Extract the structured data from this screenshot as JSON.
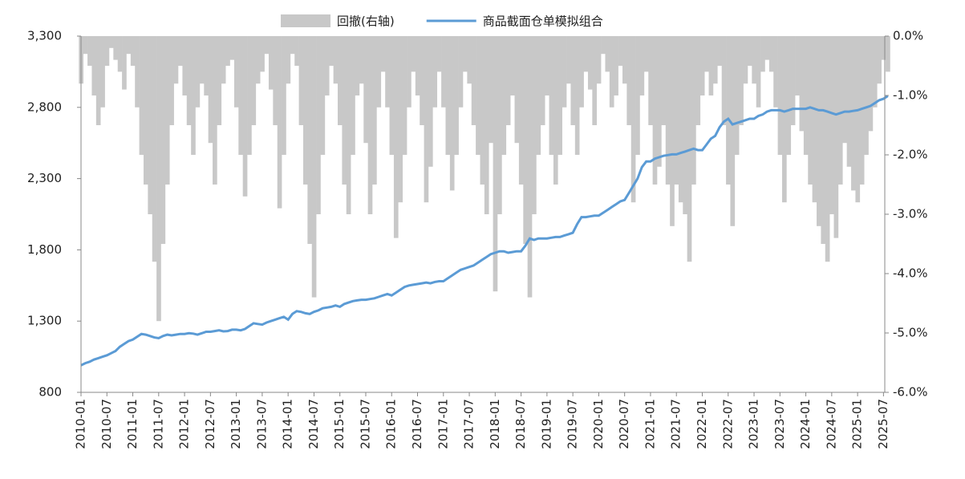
{
  "chart_data": {
    "type": "combo",
    "categories": [
      "2010-01",
      null,
      null,
      null,
      null,
      null,
      "2010-07",
      null,
      null,
      null,
      null,
      null,
      "2011-01",
      null,
      null,
      null,
      null,
      null,
      "2011-07",
      null,
      null,
      null,
      null,
      null,
      "2012-01",
      null,
      null,
      null,
      null,
      null,
      "2012-07",
      null,
      null,
      null,
      null,
      null,
      "2013-01",
      null,
      null,
      null,
      null,
      null,
      "2013-07",
      null,
      null,
      null,
      null,
      null,
      "2014-01",
      null,
      null,
      null,
      null,
      null,
      "2014-07",
      null,
      null,
      null,
      null,
      null,
      "2015-01",
      null,
      null,
      null,
      null,
      null,
      "2015-07",
      null,
      null,
      null,
      null,
      null,
      "2016-01",
      null,
      null,
      null,
      null,
      null,
      "2016-07",
      null,
      null,
      null,
      null,
      null,
      "2017-01",
      null,
      null,
      null,
      null,
      null,
      "2017-07",
      null,
      null,
      null,
      null,
      null,
      "2018-01",
      null,
      null,
      null,
      null,
      null,
      "2018-07",
      null,
      null,
      null,
      null,
      null,
      "2019-01",
      null,
      null,
      null,
      null,
      null,
      "2019-07",
      null,
      null,
      null,
      null,
      null,
      "2020-01",
      null,
      null,
      null,
      null,
      null,
      "2020-07",
      null,
      null,
      null,
      null,
      null,
      "2021-01",
      null,
      null,
      null,
      null,
      null,
      "2021-07",
      null,
      null,
      null,
      null,
      null,
      "2022-01",
      null,
      null,
      null,
      null,
      null,
      "2022-07",
      null,
      null,
      null,
      null,
      null,
      "2023-01",
      null,
      null,
      null,
      null,
      null,
      "2023-07",
      null,
      null,
      null,
      null,
      null,
      "2024-01",
      null,
      null,
      null,
      null,
      null,
      "2024-07",
      null,
      null,
      null,
      null,
      null,
      "2025-01",
      null,
      null,
      null,
      null,
      null,
      "2025-07",
      null
    ],
    "series": [
      {
        "name": "回撤(右轴)",
        "type": "area",
        "axis": "y2",
        "color": "#c8c8c8",
        "values": [
          -0.8,
          -0.3,
          -0.5,
          -1.0,
          -1.5,
          -1.2,
          -0.5,
          -0.2,
          -0.4,
          -0.6,
          -0.9,
          -0.3,
          -0.5,
          -1.2,
          -2.0,
          -2.5,
          -3.0,
          -3.8,
          -4.8,
          -3.5,
          -2.5,
          -1.5,
          -0.8,
          -0.5,
          -1.0,
          -1.5,
          -2.0,
          -1.2,
          -0.8,
          -1.0,
          -1.8,
          -2.5,
          -1.5,
          -0.8,
          -0.5,
          -0.4,
          -1.2,
          -2.0,
          -2.7,
          -2.0,
          -1.5,
          -0.8,
          -0.6,
          -0.3,
          -0.9,
          -1.5,
          -2.9,
          -2.0,
          -0.8,
          -0.3,
          -0.5,
          -1.5,
          -2.5,
          -3.5,
          -4.4,
          -3.0,
          -2.0,
          -1.0,
          -0.5,
          -0.8,
          -1.5,
          -2.5,
          -3.0,
          -2.0,
          -1.0,
          -0.8,
          -1.8,
          -3.0,
          -2.5,
          -1.2,
          -0.6,
          -1.2,
          -2.0,
          -3.4,
          -2.8,
          -2.0,
          -1.2,
          -0.6,
          -1.0,
          -1.5,
          -2.8,
          -2.2,
          -1.2,
          -0.6,
          -1.2,
          -2.0,
          -2.6,
          -2.0,
          -1.2,
          -0.6,
          -0.8,
          -1.5,
          -2.0,
          -2.5,
          -3.0,
          -1.8,
          -4.3,
          -3.0,
          -2.0,
          -1.5,
          -1.0,
          -1.8,
          -2.5,
          -3.5,
          -4.4,
          -3.0,
          -2.0,
          -1.5,
          -1.0,
          -2.0,
          -2.5,
          -2.0,
          -1.2,
          -0.8,
          -1.5,
          -2.0,
          -1.2,
          -0.6,
          -0.9,
          -1.5,
          -0.8,
          -0.3,
          -0.6,
          -1.2,
          -1.0,
          -0.5,
          -0.8,
          -1.5,
          -2.8,
          -2.0,
          -1.0,
          -0.6,
          -1.5,
          -2.5,
          -2.2,
          -1.5,
          -2.5,
          -3.2,
          -2.5,
          -2.8,
          -3.0,
          -3.8,
          -2.5,
          -1.5,
          -1.0,
          -0.6,
          -1.0,
          -0.8,
          -0.5,
          -1.5,
          -2.5,
          -3.2,
          -2.0,
          -1.5,
          -0.8,
          -0.5,
          -0.8,
          -1.2,
          -0.6,
          -0.4,
          -0.6,
          -1.2,
          -2.0,
          -2.8,
          -2.0,
          -1.5,
          -1.0,
          -1.6,
          -2.0,
          -2.5,
          -2.8,
          -3.2,
          -3.5,
          -3.8,
          -3.0,
          -3.4,
          -2.5,
          -1.8,
          -2.2,
          -2.6,
          -2.8,
          -2.5,
          -2.0,
          -1.6,
          -1.2,
          -0.8,
          -0.4,
          -0.6
        ]
      },
      {
        "name": "商品截面仓单模拟组合",
        "type": "line",
        "axis": "y",
        "color": "#5b9bd5",
        "values": [
          990,
          1005,
          1015,
          1030,
          1040,
          1050,
          1060,
          1075,
          1090,
          1120,
          1140,
          1160,
          1170,
          1190,
          1210,
          1205,
          1195,
          1185,
          1180,
          1195,
          1205,
          1200,
          1205,
          1210,
          1210,
          1215,
          1212,
          1205,
          1215,
          1225,
          1225,
          1230,
          1235,
          1228,
          1230,
          1240,
          1240,
          1235,
          1245,
          1265,
          1285,
          1280,
          1275,
          1290,
          1300,
          1310,
          1320,
          1330,
          1310,
          1350,
          1370,
          1365,
          1355,
          1350,
          1365,
          1375,
          1390,
          1395,
          1400,
          1410,
          1400,
          1420,
          1430,
          1440,
          1445,
          1450,
          1450,
          1455,
          1460,
          1470,
          1480,
          1490,
          1480,
          1500,
          1520,
          1540,
          1550,
          1555,
          1560,
          1565,
          1570,
          1565,
          1575,
          1580,
          1580,
          1600,
          1620,
          1640,
          1660,
          1670,
          1680,
          1690,
          1710,
          1730,
          1750,
          1770,
          1780,
          1790,
          1790,
          1780,
          1785,
          1790,
          1790,
          1830,
          1880,
          1870,
          1880,
          1880,
          1880,
          1885,
          1890,
          1890,
          1900,
          1910,
          1920,
          1980,
          2030,
          2030,
          2035,
          2040,
          2040,
          2060,
          2080,
          2100,
          2120,
          2140,
          2150,
          2200,
          2250,
          2300,
          2380,
          2420,
          2420,
          2440,
          2450,
          2460,
          2465,
          2470,
          2470,
          2480,
          2490,
          2500,
          2510,
          2500,
          2500,
          2540,
          2580,
          2600,
          2660,
          2700,
          2720,
          2680,
          2690,
          2700,
          2710,
          2720,
          2720,
          2740,
          2750,
          2770,
          2780,
          2780,
          2780,
          2770,
          2780,
          2790,
          2790,
          2790,
          2790,
          2800,
          2790,
          2780,
          2780,
          2770,
          2760,
          2750,
          2760,
          2770,
          2770,
          2775,
          2780,
          2790,
          2800,
          2810,
          2830,
          2850,
          2860,
          2880
        ]
      }
    ],
    "ylim": [
      800,
      3300
    ],
    "yticks": [
      800,
      {
        "value": 1300,
        "label": "1,300"
      },
      {
        "value": 1800,
        "label": "1,800"
      },
      {
        "value": 2300,
        "label": "2,300"
      },
      {
        "value": 2800,
        "label": "2,800"
      },
      {
        "value": 3300,
        "label": "3,300"
      }
    ],
    "y2lim": [
      -6,
      0
    ],
    "y2ticks": [
      {
        "value": -6,
        "label": "-6.0%"
      },
      {
        "value": -5,
        "label": "-5.0%"
      },
      {
        "value": -4,
        "label": "-4.0%"
      },
      {
        "value": -3,
        "label": "-3.0%"
      },
      {
        "value": -2,
        "label": "-2.0%"
      },
      {
        "value": -1,
        "label": "-1.0%"
      },
      {
        "value": 0,
        "label": "0.0%"
      }
    ],
    "legend": "top"
  }
}
